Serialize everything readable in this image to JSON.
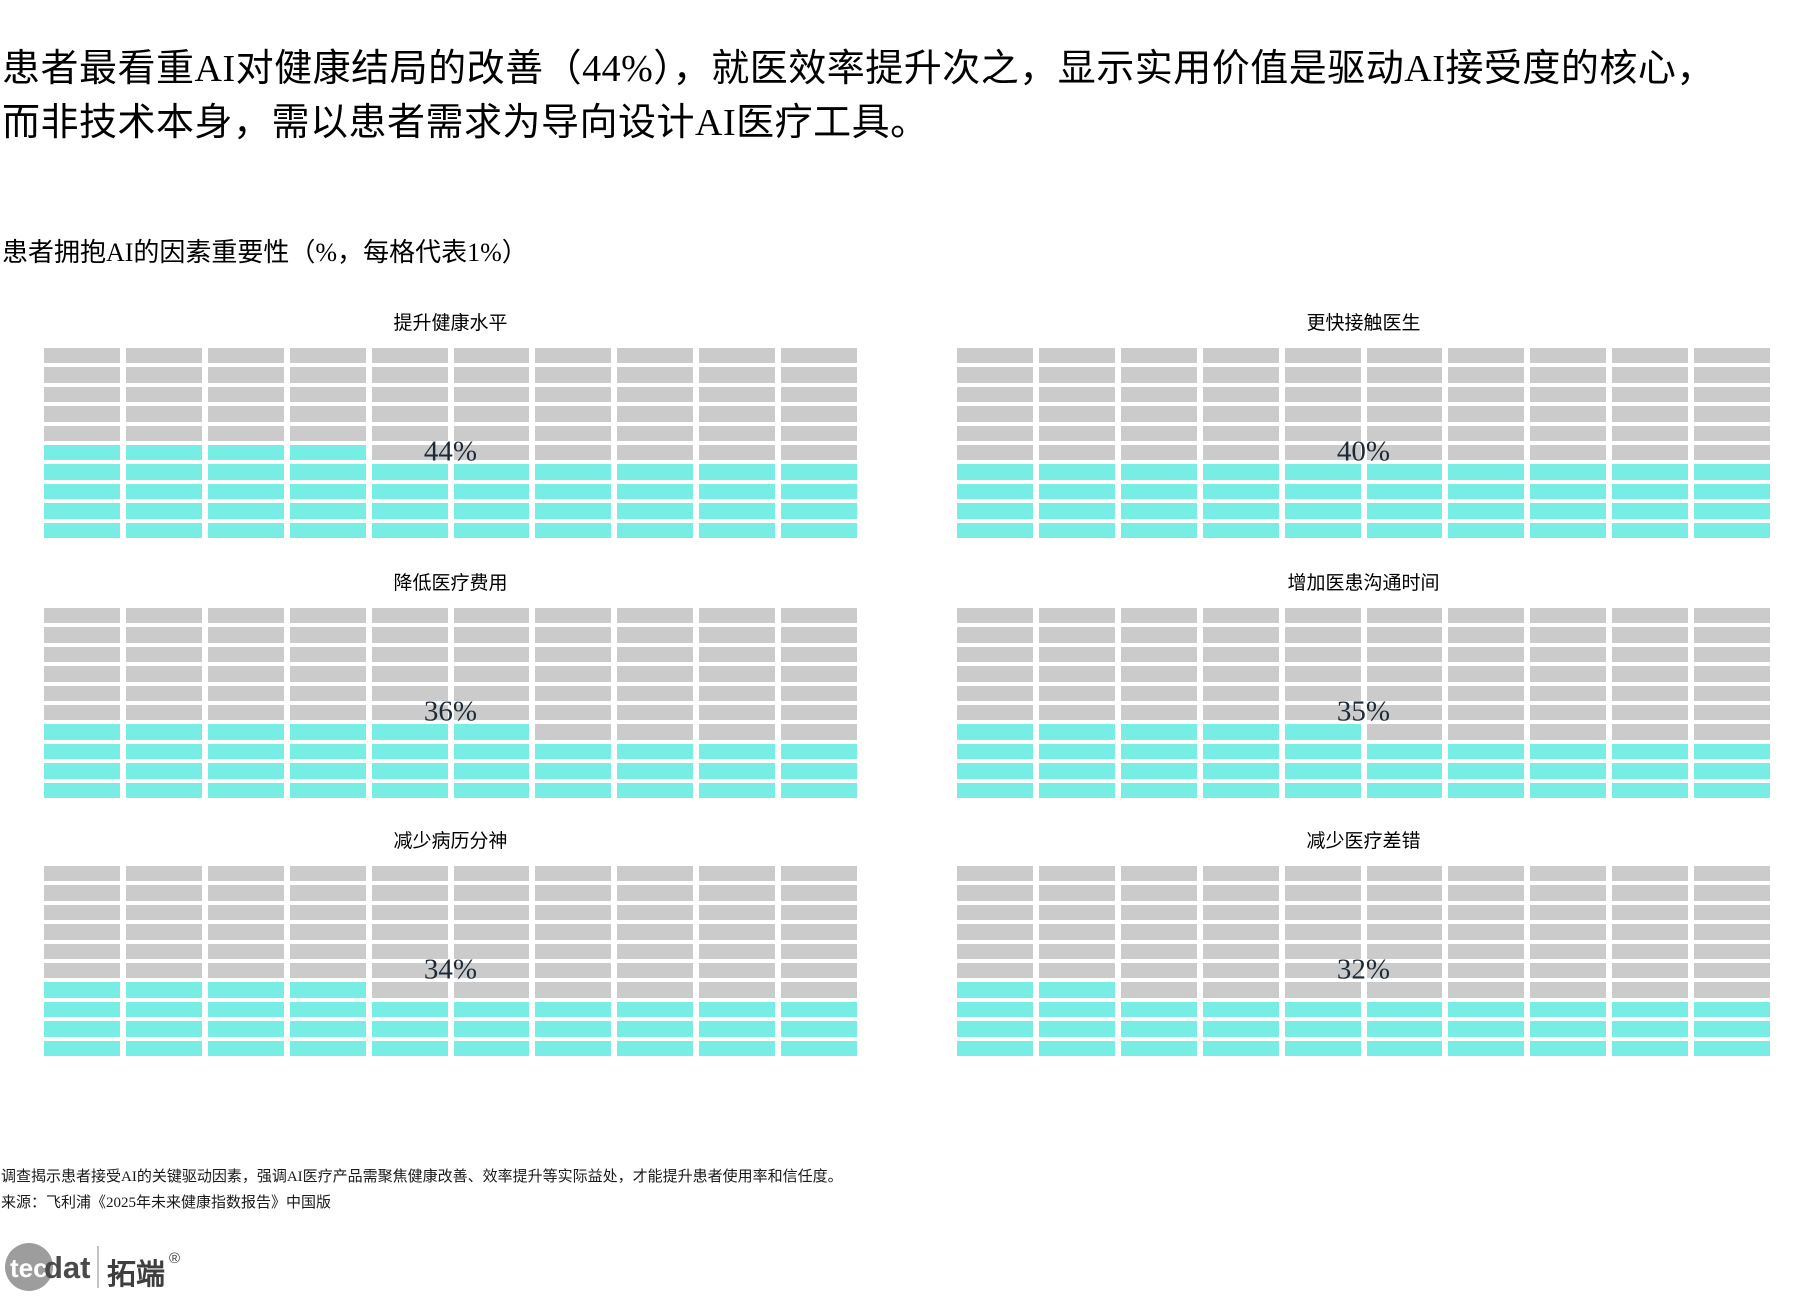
{
  "headline_lines": [
    "患者最看重AI对健康结局的改善（44%），就医效率提升次之，显示实用价值是驱动AI接受度的核心，",
    "而非技术本身，需以患者需求为导向设计AI医疗工具。"
  ],
  "subtitle": "患者拥抱AI的因素重要性（%，每格代表1%）",
  "chart_data": {
    "type": "heatmap",
    "subtype": "waffle",
    "title": "患者拥抱AI的因素重要性（%，每格代表1%）",
    "unit_per_cell_pct": 1,
    "grid": {
      "rows": 10,
      "cols": 10,
      "fill_origin": "bottom-left"
    },
    "categories": [
      "提升健康水平",
      "更快接触医生",
      "降低医疗费用",
      "增加医患沟通时间",
      "减少病历分神",
      "减少医疗差错"
    ],
    "values": [
      44,
      40,
      36,
      35,
      34,
      32
    ],
    "panels": [
      {
        "label": "提升健康水平",
        "value": 44,
        "value_label": "44%"
      },
      {
        "label": "更快接触医生",
        "value": 40,
        "value_label": "40%"
      },
      {
        "label": "降低医疗费用",
        "value": 36,
        "value_label": "36%"
      },
      {
        "label": "增加医患沟通时间",
        "value": 35,
        "value_label": "35%"
      },
      {
        "label": "减少病历分神",
        "value": 34,
        "value_label": "34%"
      },
      {
        "label": "减少医疗差错",
        "value": 32,
        "value_label": "32%"
      }
    ],
    "colors": {
      "filled": "#78EDE4",
      "empty": "#CBCBCB",
      "value_label": "#1C2A38"
    },
    "legend": "none",
    "grid_lines": "white gaps between cells"
  },
  "footer": {
    "note": "调查揭示患者接受AI的关键驱动因素，强调AI医疗产品需聚焦健康改善、效率提升等实际益处，才能提升患者使用率和信任度。",
    "source": "来源：飞利浦《2025年未来健康指数报告》中国版"
  },
  "logo": {
    "circle_text": "tec",
    "suffix_text": "dat",
    "cjk_text": "拓端",
    "reg_mark": "®"
  }
}
